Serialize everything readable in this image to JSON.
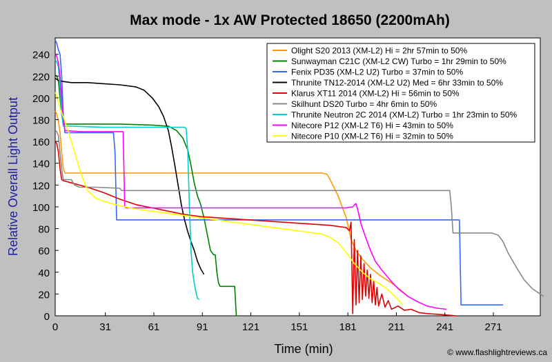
{
  "chart_data": {
    "type": "line",
    "title": "Max mode - 1x AW Protected 18650 (2200mAh)",
    "xlabel": "Time (min)",
    "ylabel": "Relative Overall Light Output",
    "credit": "© www.flashlightreviews.ca",
    "xlim": [
      0,
      300
    ],
    "ylim": [
      0,
      255
    ],
    "xticks": [
      0,
      31,
      61,
      91,
      121,
      151,
      181,
      211,
      241,
      271
    ],
    "yticks": [
      0,
      20,
      40,
      60,
      80,
      100,
      120,
      140,
      160,
      180,
      200,
      220,
      240
    ],
    "grid": false,
    "legend_position": "top-right",
    "series": [
      {
        "name": "Olight S20 2013 (XM-L2) Hi = 2hr 57min to 50%",
        "color": "#ff9900",
        "points": [
          [
            0,
            188
          ],
          [
            1,
            185
          ],
          [
            2,
            178
          ],
          [
            3,
            168
          ],
          [
            4,
            150
          ],
          [
            5,
            135
          ],
          [
            6,
            131
          ],
          [
            20,
            131
          ],
          [
            60,
            131
          ],
          [
            100,
            131
          ],
          [
            140,
            131
          ],
          [
            165,
            131
          ],
          [
            168,
            130
          ],
          [
            170,
            125
          ],
          [
            175,
            110
          ],
          [
            180,
            90
          ],
          [
            183,
            70
          ],
          [
            186,
            60
          ],
          [
            190,
            52
          ],
          [
            195,
            44
          ],
          [
            200,
            38
          ],
          [
            205,
            33
          ],
          [
            210,
            28
          ],
          [
            215,
            22
          ],
          [
            218,
            18
          ]
        ]
      },
      {
        "name": "Sunwayman C21C (XM-L2 CW) Turbo = 1hr 29min to 50%",
        "color": "#008000",
        "points": [
          [
            0,
            221
          ],
          [
            1,
            220
          ],
          [
            2,
            215
          ],
          [
            3,
            200
          ],
          [
            4,
            185
          ],
          [
            5,
            177
          ],
          [
            6,
            176
          ],
          [
            20,
            176
          ],
          [
            40,
            176
          ],
          [
            60,
            175
          ],
          [
            70,
            174
          ],
          [
            75,
            170
          ],
          [
            79,
            163
          ],
          [
            82,
            152
          ],
          [
            84,
            138
          ],
          [
            86,
            122
          ],
          [
            88,
            110
          ],
          [
            90,
            102
          ],
          [
            92,
            90
          ],
          [
            94,
            75
          ],
          [
            96,
            60
          ],
          [
            98,
            56
          ],
          [
            99,
            56
          ],
          [
            100,
            40
          ],
          [
            101,
            30
          ],
          [
            102,
            27
          ],
          [
            110,
            27
          ],
          [
            111,
            27
          ],
          [
            112,
            0
          ],
          [
            113,
            0
          ]
        ]
      },
      {
        "name": "Fenix PD35 (XM-L2 U2) Turbo = 37min to 50%",
        "color": "#3366ff",
        "points": [
          [
            0,
            253
          ],
          [
            1,
            250
          ],
          [
            2,
            244
          ],
          [
            3,
            240
          ],
          [
            4,
            220
          ],
          [
            5,
            185
          ],
          [
            6,
            168
          ],
          [
            12,
            168
          ],
          [
            20,
            168
          ],
          [
            30,
            168
          ],
          [
            35,
            168
          ],
          [
            36,
            168
          ],
          [
            37,
            150
          ],
          [
            38,
            88
          ],
          [
            40,
            88
          ],
          [
            80,
            88
          ],
          [
            120,
            88
          ],
          [
            160,
            88
          ],
          [
            200,
            88
          ],
          [
            240,
            88
          ],
          [
            250,
            88
          ],
          [
            251,
            10
          ],
          [
            268,
            10
          ],
          [
            277,
            10
          ]
        ]
      },
      {
        "name": "Thrunite TN12-2014 (XM-L2 U2) Med = 6hr 33min to 50%",
        "color": "#000000",
        "points": [
          [
            0,
            218
          ],
          [
            1,
            217
          ],
          [
            2,
            216
          ],
          [
            5,
            215
          ],
          [
            10,
            214
          ],
          [
            20,
            214
          ],
          [
            30,
            213
          ],
          [
            40,
            212
          ],
          [
            50,
            210
          ],
          [
            55,
            207
          ],
          [
            60,
            200
          ],
          [
            64,
            192
          ],
          [
            67,
            183
          ],
          [
            70,
            170
          ],
          [
            72,
            155
          ],
          [
            74,
            138
          ],
          [
            76,
            120
          ],
          [
            78,
            102
          ],
          [
            80,
            88
          ],
          [
            82,
            77
          ],
          [
            84,
            68
          ],
          [
            86,
            60
          ],
          [
            88,
            50
          ],
          [
            90,
            43
          ],
          [
            92,
            38
          ]
        ]
      },
      {
        "name": "Klarus XT11 2014 (XM-L2) Hi = 56min to 50%",
        "color": "#e00000",
        "points": [
          [
            0,
            160
          ],
          [
            1,
            158
          ],
          [
            2,
            150
          ],
          [
            3,
            135
          ],
          [
            4,
            125
          ],
          [
            5,
            124
          ],
          [
            10,
            122
          ],
          [
            20,
            118
          ],
          [
            30,
            113
          ],
          [
            40,
            107
          ],
          [
            50,
            102
          ],
          [
            60,
            99
          ],
          [
            70,
            96
          ],
          [
            80,
            93
          ],
          [
            90,
            91
          ],
          [
            100,
            90
          ],
          [
            110,
            89
          ],
          [
            120,
            88
          ],
          [
            130,
            87
          ],
          [
            140,
            86
          ],
          [
            150,
            85
          ],
          [
            160,
            84
          ],
          [
            170,
            83
          ],
          [
            175,
            82
          ],
          [
            180,
            81
          ],
          [
            182,
            78
          ],
          [
            183,
            86
          ],
          [
            184,
            2
          ],
          [
            185,
            70
          ],
          [
            186,
            10
          ],
          [
            187,
            60
          ],
          [
            188,
            12
          ],
          [
            189,
            55
          ],
          [
            190,
            15
          ],
          [
            191,
            48
          ],
          [
            192,
            18
          ],
          [
            193,
            42
          ],
          [
            194,
            16
          ],
          [
            195,
            38
          ],
          [
            196,
            12
          ],
          [
            197,
            32
          ],
          [
            198,
            10
          ],
          [
            199,
            26
          ],
          [
            200,
            9
          ],
          [
            202,
            20
          ],
          [
            204,
            8
          ],
          [
            206,
            14
          ],
          [
            208,
            6
          ],
          [
            212,
            9
          ],
          [
            216,
            5
          ],
          [
            220,
            6
          ],
          [
            225,
            3
          ],
          [
            230,
            2
          ],
          [
            240,
            1
          ],
          [
            248,
            0
          ]
        ]
      },
      {
        "name": "Skilhunt DS20 Turbo = 4hr 6min to 50%",
        "color": "#888888",
        "points": [
          [
            0,
            170
          ],
          [
            1,
            169
          ],
          [
            2,
            165
          ],
          [
            3,
            150
          ],
          [
            4,
            135
          ],
          [
            5,
            125
          ],
          [
            10,
            125
          ],
          [
            12,
            120
          ],
          [
            15,
            118
          ],
          [
            25,
            118
          ],
          [
            40,
            117
          ],
          [
            41,
            115
          ],
          [
            60,
            115
          ],
          [
            100,
            115
          ],
          [
            150,
            115
          ],
          [
            200,
            115
          ],
          [
            240,
            115
          ],
          [
            244,
            115
          ],
          [
            245,
            100
          ],
          [
            246,
            76
          ],
          [
            260,
            76
          ],
          [
            270,
            76
          ],
          [
            274,
            74
          ],
          [
            277,
            68
          ],
          [
            280,
            58
          ],
          [
            285,
            45
          ],
          [
            290,
            33
          ],
          [
            295,
            25
          ],
          [
            300,
            20
          ],
          [
            302,
            18
          ]
        ]
      },
      {
        "name": "Thrunite Neutron 2C 2014 (XM-L2) Turbo = 1hr 23min to 50%",
        "color": "#00cccc",
        "points": [
          [
            0,
            235
          ],
          [
            1,
            233
          ],
          [
            2,
            228
          ],
          [
            3,
            210
          ],
          [
            4,
            185
          ],
          [
            5,
            174
          ],
          [
            10,
            174
          ],
          [
            30,
            173
          ],
          [
            50,
            173
          ],
          [
            70,
            173
          ],
          [
            80,
            173
          ],
          [
            81,
            172
          ],
          [
            82,
            150
          ],
          [
            83,
            100
          ],
          [
            84,
            60
          ],
          [
            85,
            40
          ],
          [
            86,
            30
          ],
          [
            87,
            22
          ],
          [
            88,
            16
          ],
          [
            89,
            15
          ]
        ]
      },
      {
        "name": "Nitecore P12 (XM-L2 T6) Hi = 43min to 50%",
        "color": "#ff00ff",
        "points": [
          [
            0,
            240
          ],
          [
            1,
            238
          ],
          [
            2,
            232
          ],
          [
            3,
            220
          ],
          [
            4,
            200
          ],
          [
            5,
            180
          ],
          [
            6,
            170
          ],
          [
            15,
            169
          ],
          [
            30,
            169
          ],
          [
            40,
            169
          ],
          [
            42,
            169
          ],
          [
            43,
            100
          ],
          [
            44,
            99
          ],
          [
            60,
            99
          ],
          [
            80,
            99
          ],
          [
            100,
            99
          ],
          [
            120,
            99
          ],
          [
            140,
            99
          ],
          [
            160,
            99
          ],
          [
            170,
            99
          ],
          [
            180,
            99
          ],
          [
            184,
            100
          ],
          [
            186,
            103
          ],
          [
            187,
            98
          ],
          [
            189,
            85
          ],
          [
            192,
            72
          ],
          [
            195,
            60
          ],
          [
            198,
            50
          ],
          [
            202,
            42
          ],
          [
            207,
            33
          ],
          [
            212,
            25
          ],
          [
            218,
            18
          ],
          [
            224,
            13
          ],
          [
            230,
            9
          ],
          [
            236,
            7
          ],
          [
            242,
            6
          ]
        ]
      },
      {
        "name": "Nitecore P10 (XM-L2 T6) Hi = 32min to 50%",
        "color": "#ffff00",
        "points": [
          [
            0,
            205
          ],
          [
            1,
            202
          ],
          [
            2,
            196
          ],
          [
            3,
            190
          ],
          [
            5,
            183
          ],
          [
            8,
            170
          ],
          [
            12,
            150
          ],
          [
            16,
            130
          ],
          [
            20,
            115
          ],
          [
            25,
            108
          ],
          [
            30,
            105
          ],
          [
            40,
            101
          ],
          [
            50,
            98
          ],
          [
            60,
            96
          ],
          [
            70,
            94
          ],
          [
            80,
            92
          ],
          [
            90,
            90
          ],
          [
            100,
            88
          ],
          [
            110,
            86
          ],
          [
            120,
            84
          ],
          [
            130,
            82
          ],
          [
            140,
            80
          ],
          [
            150,
            78
          ],
          [
            160,
            76
          ],
          [
            165,
            75
          ],
          [
            170,
            72
          ],
          [
            175,
            67
          ],
          [
            180,
            58
          ],
          [
            185,
            48
          ],
          [
            190,
            40
          ],
          [
            195,
            34
          ],
          [
            200,
            30
          ],
          [
            205,
            25
          ],
          [
            210,
            18
          ],
          [
            215,
            10
          ]
        ]
      }
    ]
  }
}
